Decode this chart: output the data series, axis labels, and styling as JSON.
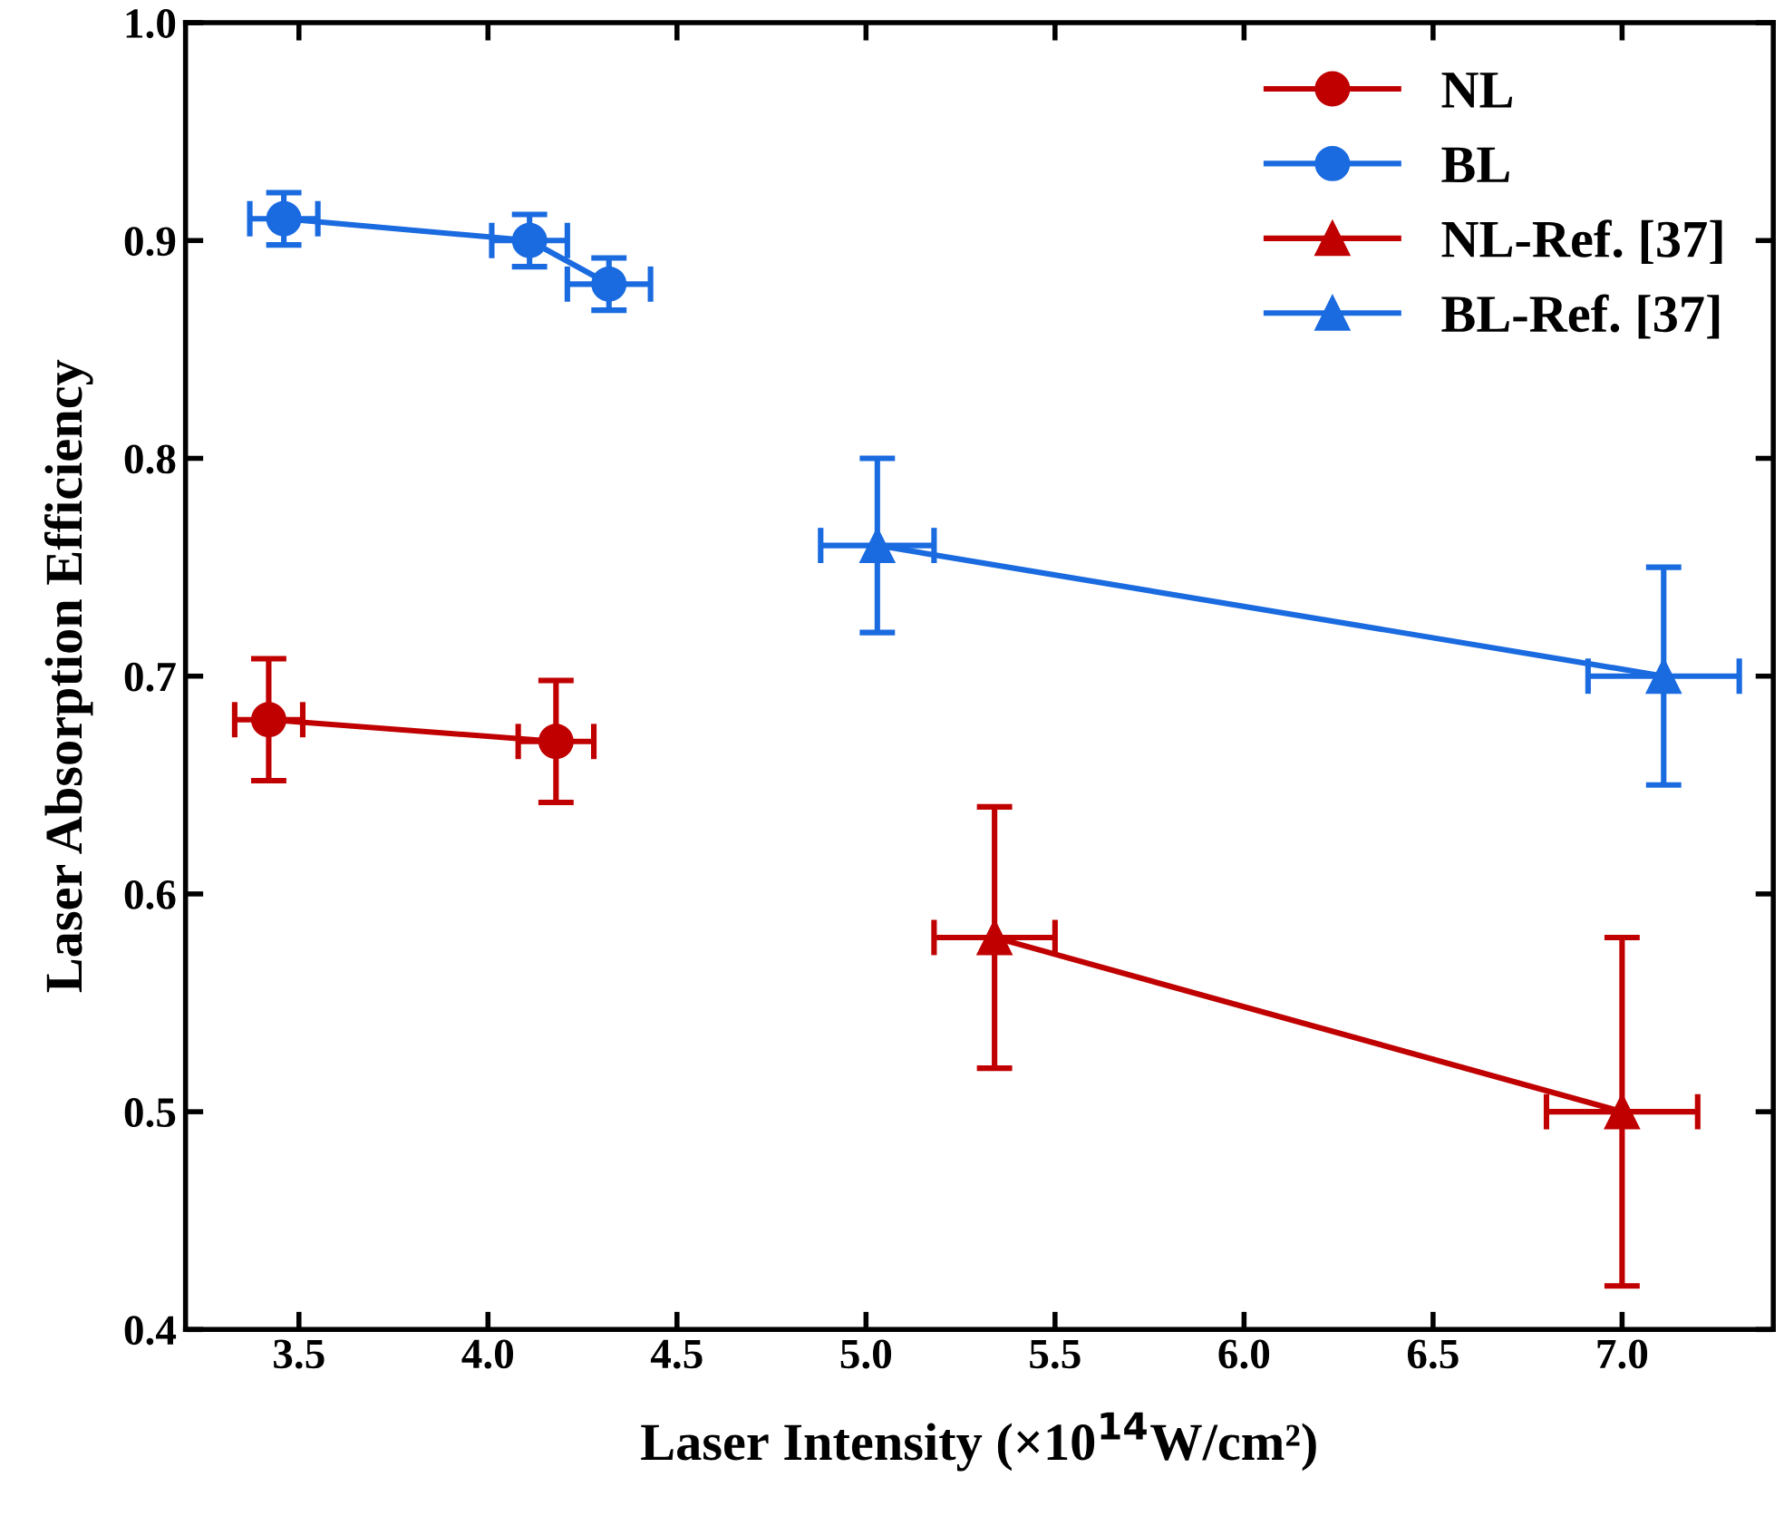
{
  "chart_data": {
    "type": "line",
    "xlabel": "Laser Intensity (×10$^{14}$W/cm²)",
    "ylabel": "Laser Absorption Efficiency",
    "xlim": [
      3.2,
      7.4
    ],
    "xticks": [
      3.5,
      {
        "value": 4,
        "label": "4.0"
      },
      4.5,
      {
        "value": 5,
        "label": "5.0"
      },
      5.5,
      {
        "value": 6,
        "label": "6.0"
      },
      6.5,
      {
        "value": 7,
        "label": "7.0"
      }
    ],
    "ylim": [
      0.4,
      1.0
    ],
    "yticks": [
      0.4,
      0.5,
      0.6,
      0.7,
      0.8,
      0.9,
      {
        "value": 1,
        "label": "1.0"
      }
    ],
    "grid": false,
    "legend": "top right",
    "line_style": "solid",
    "series": [
      {
        "name": "NL",
        "color": "#c00000",
        "marker": "circle",
        "x": [
          3.42,
          4.18
        ],
        "values": [
          0.68,
          0.67
        ],
        "errors": [
          0.028,
          0.028
        ],
        "xerrors": [
          0.09,
          0.1
        ]
      },
      {
        "name": "BL",
        "color": "#1a6ae0",
        "marker": "circle",
        "x": [
          3.46,
          4.11,
          4.32
        ],
        "values": [
          0.91,
          0.9,
          0.88
        ],
        "errors": [
          0.012,
          0.012,
          0.012
        ],
        "xerrors": [
          0.09,
          0.1,
          0.11
        ]
      },
      {
        "name": "NL-Ref. [37]",
        "color": "#c00000",
        "marker": "triangle",
        "x": [
          5.34,
          7.0
        ],
        "values": [
          0.58,
          0.5
        ],
        "errors": [
          0.06,
          0.08
        ],
        "xerrors": [
          0.16,
          0.2
        ]
      },
      {
        "name": "BL-Ref. [37]",
        "color": "#1a6ae0",
        "marker": "triangle",
        "x": [
          5.03,
          7.11
        ],
        "values": [
          0.76,
          0.7
        ],
        "errors": [
          0.04,
          0.05
        ],
        "xerrors": [
          0.15,
          0.2
        ]
      }
    ]
  }
}
